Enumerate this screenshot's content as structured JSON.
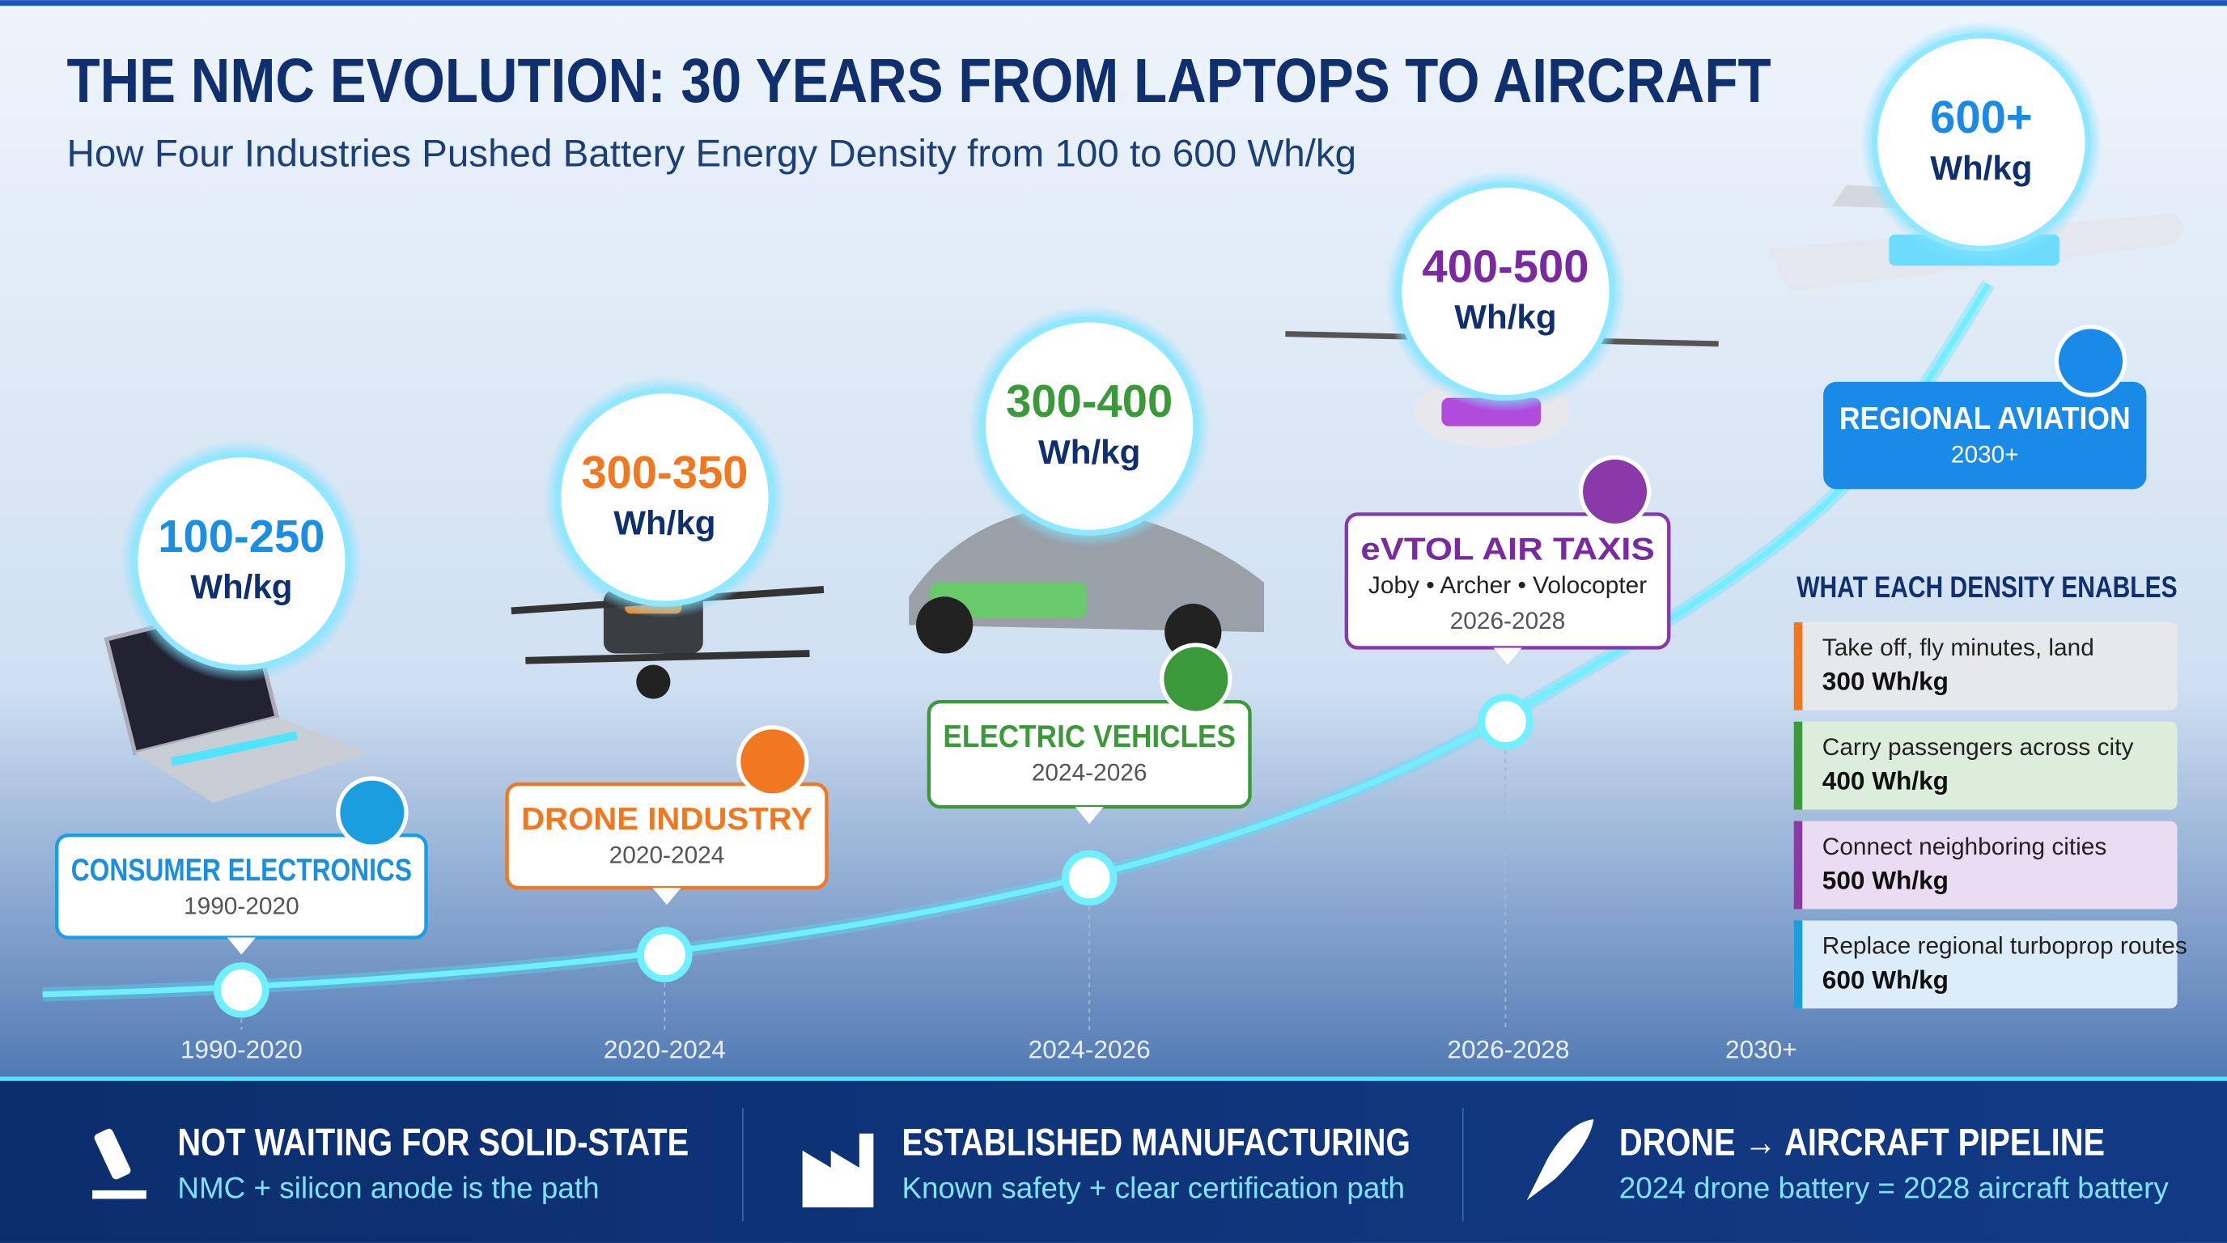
{
  "header": {
    "title": "THE NMC EVOLUTION: 30 YEARS FROM LAPTOPS TO AIRCRAFT",
    "subtitle": "How Four Industries Pushed Battery Energy Density from 100 to 600 Wh/kg"
  },
  "milestones": [
    {
      "density": "100-250",
      "unit": "Wh/kg",
      "industry": "CONSUMER ELECTRONICS",
      "years": "1990-2020"
    },
    {
      "density": "300-350",
      "unit": "Wh/kg",
      "industry": "DRONE INDUSTRY",
      "years": "2020-2024"
    },
    {
      "density": "300-400",
      "unit": "Wh/kg",
      "industry": "ELECTRIC VEHICLES",
      "years": "2024-2026"
    },
    {
      "density": "400-500",
      "unit": "Wh/kg",
      "industry": "eVTOL AIR TAXIS",
      "detail": "Joby • Archer • Volocopter",
      "years": "2026-2028"
    },
    {
      "density": "600+",
      "unit": "Wh/kg",
      "industry": "REGIONAL AVIATION",
      "years": "2030+"
    }
  ],
  "timeline_labels": [
    "1990-2020",
    "2020-2024",
    "2024-2026",
    "2026-2028",
    "2030+"
  ],
  "enables": {
    "title": "WHAT EACH DENSITY ENABLES",
    "items": [
      {
        "text": "Take off, fly minutes, land",
        "density": "300 Wh/kg"
      },
      {
        "text": "Carry passengers across city",
        "density": "400 Wh/kg"
      },
      {
        "text": "Connect neighboring cities",
        "density": "500 Wh/kg"
      },
      {
        "text": "Replace regional turboprop routes",
        "density": "600 Wh/kg"
      }
    ]
  },
  "footer": [
    {
      "title": "NOT WAITING FOR SOLID-STATE",
      "text": "NMC + silicon anode is the path"
    },
    {
      "title": "ESTABLISHED MANUFACTURING",
      "text": "Known safety + clear certification path"
    },
    {
      "title": "DRONE → AIRCRAFT PIPELINE",
      "text": "2024 drone battery = 2028 aircraft battery"
    }
  ]
}
